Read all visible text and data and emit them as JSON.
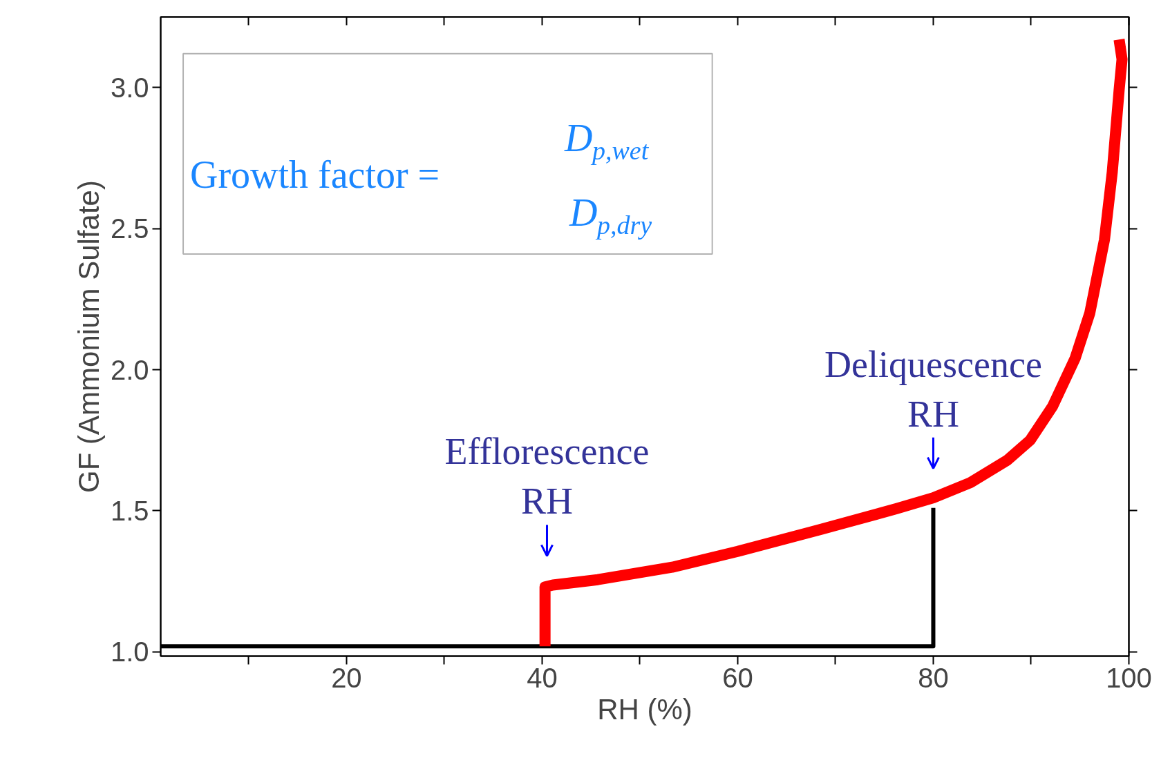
{
  "chart_data": {
    "type": "line",
    "xlabel": "RH (%)",
    "ylabel": "GF (Ammonium Sulfate)",
    "xlim": [
      1,
      100
    ],
    "ylim": [
      0.985,
      3.25
    ],
    "xticks": [
      {
        "value": 10,
        "label": null
      },
      20,
      {
        "value": 30,
        "label": null
      },
      40,
      {
        "value": 50,
        "label": null
      },
      60,
      {
        "value": 70,
        "label": null
      },
      80,
      {
        "value": 90,
        "label": null
      },
      100
    ],
    "yticks": [
      {
        "value": 1.0,
        "label": "1.0"
      },
      {
        "value": 1.5,
        "label": "1.5"
      },
      {
        "value": 2.0,
        "label": "2.0"
      },
      {
        "value": 2.5,
        "label": "2.5"
      },
      {
        "value": 3.0,
        "label": "3.0"
      }
    ],
    "grid": false,
    "line_style": "solid",
    "series": [
      {
        "color": "#000000",
        "x": [
          1,
          80,
          80
        ],
        "values": [
          1.02,
          1.02,
          1.51
        ]
      },
      {
        "color": "#ff0000",
        "x": [
          40.3,
          40.3,
          41.1,
          45.7,
          53.3,
          60,
          68.6,
          76.2,
          80,
          83.8,
          87.6,
          89.9,
          92.2,
          94.5,
          96,
          97.5,
          98.3,
          99.0,
          99.3,
          99.0
        ],
        "values": [
          1.02,
          1.23,
          1.237,
          1.256,
          1.3,
          1.356,
          1.435,
          1.507,
          1.546,
          1.6,
          1.68,
          1.75,
          1.87,
          2.04,
          2.2,
          2.46,
          2.7,
          2.99,
          3.1,
          3.17
        ]
      }
    ],
    "annotations": [
      "Growth factor =",
      "D$_{p,wet}$",
      "D$_{p,dry}$",
      {
        "text": "Efflorescence\nRH",
        "x": 40.5,
        "y": 1.24
      },
      {
        "text": "Deliquescence\nRH",
        "x": 80,
        "y": 1.55
      }
    ]
  }
}
